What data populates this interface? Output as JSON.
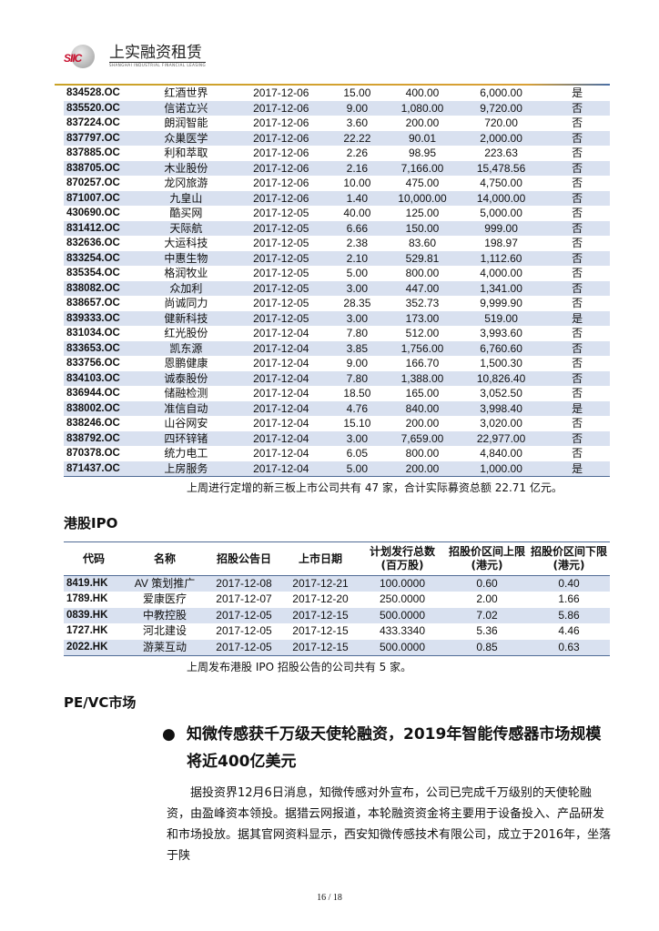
{
  "header": {
    "logo_cn": "上实融资租赁",
    "logo_en": "SHANGHAI INDUSTRIAL FINANCIAL LEASING",
    "logo_mark": "SIIC"
  },
  "neeq_rows": [
    [
      "834528.OC",
      "红酒世界",
      "2017-12-06",
      "15.00",
      "400.00",
      "6,000.00",
      "是"
    ],
    [
      "835520.OC",
      "信诺立兴",
      "2017-12-06",
      "9.00",
      "1,080.00",
      "9,720.00",
      "否"
    ],
    [
      "837224.OC",
      "朗润智能",
      "2017-12-06",
      "3.60",
      "200.00",
      "720.00",
      "否"
    ],
    [
      "837797.OC",
      "众巢医学",
      "2017-12-06",
      "22.22",
      "90.01",
      "2,000.00",
      "否"
    ],
    [
      "837885.OC",
      "利和萃取",
      "2017-12-06",
      "2.26",
      "98.95",
      "223.63",
      "否"
    ],
    [
      "838705.OC",
      "木业股份",
      "2017-12-06",
      "2.16",
      "7,166.00",
      "15,478.56",
      "否"
    ],
    [
      "870257.OC",
      "龙冈旅游",
      "2017-12-06",
      "10.00",
      "475.00",
      "4,750.00",
      "否"
    ],
    [
      "871007.OC",
      "九皇山",
      "2017-12-06",
      "1.40",
      "10,000.00",
      "14,000.00",
      "否"
    ],
    [
      "430690.OC",
      "酷买网",
      "2017-12-05",
      "40.00",
      "125.00",
      "5,000.00",
      "否"
    ],
    [
      "831412.OC",
      "天际航",
      "2017-12-05",
      "6.66",
      "150.00",
      "999.00",
      "否"
    ],
    [
      "832636.OC",
      "大运科技",
      "2017-12-05",
      "2.38",
      "83.60",
      "198.97",
      "否"
    ],
    [
      "833254.OC",
      "中惠生物",
      "2017-12-05",
      "2.10",
      "529.81",
      "1,112.60",
      "否"
    ],
    [
      "835354.OC",
      "格润牧业",
      "2017-12-05",
      "5.00",
      "800.00",
      "4,000.00",
      "否"
    ],
    [
      "838082.OC",
      "众加利",
      "2017-12-05",
      "3.00",
      "447.00",
      "1,341.00",
      "否"
    ],
    [
      "838657.OC",
      "尚诚同力",
      "2017-12-05",
      "28.35",
      "352.73",
      "9,999.90",
      "否"
    ],
    [
      "839333.OC",
      "健新科技",
      "2017-12-05",
      "3.00",
      "173.00",
      "519.00",
      "是"
    ],
    [
      "831034.OC",
      "红光股份",
      "2017-12-04",
      "7.80",
      "512.00",
      "3,993.60",
      "否"
    ],
    [
      "833653.OC",
      "凯东源",
      "2017-12-04",
      "3.85",
      "1,756.00",
      "6,760.60",
      "否"
    ],
    [
      "833756.OC",
      "恩鹏健康",
      "2017-12-04",
      "9.00",
      "166.70",
      "1,500.30",
      "否"
    ],
    [
      "834103.OC",
      "诚泰股份",
      "2017-12-04",
      "7.80",
      "1,388.00",
      "10,826.40",
      "否"
    ],
    [
      "836944.OC",
      "储融检测",
      "2017-12-04",
      "18.50",
      "165.00",
      "3,052.50",
      "否"
    ],
    [
      "838002.OC",
      "准信自动",
      "2017-12-04",
      "4.76",
      "840.00",
      "3,998.40",
      "是"
    ],
    [
      "838246.OC",
      "山谷网安",
      "2017-12-04",
      "15.10",
      "200.00",
      "3,020.00",
      "否"
    ],
    [
      "838792.OC",
      "四环锌锗",
      "2017-12-04",
      "3.00",
      "7,659.00",
      "22,977.00",
      "否"
    ],
    [
      "870378.OC",
      "统力电工",
      "2017-12-04",
      "6.05",
      "800.00",
      "4,840.00",
      "否"
    ],
    [
      "871437.OC",
      "上房服务",
      "2017-12-04",
      "5.00",
      "200.00",
      "1,000.00",
      "是"
    ]
  ],
  "neeq_note": "上周进行定增的新三板上市公司共有 47 家，合计实际募资总额 22.71 亿元。",
  "hk_title": "港股IPO",
  "hk_headers": [
    "代码",
    "名称",
    "招股公告日",
    "上市日期",
    "计划发行总数\n(百万股)",
    "招股价区间上限\n(港元)",
    "招股价区间下限\n(港元)"
  ],
  "hk_rows": [
    [
      "8419.HK",
      "AV 策划推广",
      "2017-12-08",
      "2017-12-21",
      "100.0000",
      "0.60",
      "0.40"
    ],
    [
      "1789.HK",
      "爱康医疗",
      "2017-12-07",
      "2017-12-20",
      "250.0000",
      "2.00",
      "1.66"
    ],
    [
      "0839.HK",
      "中教控股",
      "2017-12-05",
      "2017-12-15",
      "500.0000",
      "7.02",
      "5.86"
    ],
    [
      "1727.HK",
      "河北建设",
      "2017-12-05",
      "2017-12-15",
      "433.3340",
      "5.36",
      "4.46"
    ],
    [
      "2022.HK",
      "游莱互动",
      "2017-12-05",
      "2017-12-15",
      "500.0000",
      "0.85",
      "0.63"
    ]
  ],
  "hk_note": "上周发布港股 IPO 招股公告的公司共有 5 家。",
  "pe_title": "PE/VC市场",
  "article": {
    "bullet": "●",
    "headline": "知微传感获千万级天使轮融资，2019年智能传感器市场规模将近400亿美元",
    "body": "据投资界12月6日消息，知微传感对外宣布，公司已完成千万级别的天使轮融资，由盈峰资本领投。据猎云网报道，本轮融资资金将主要用于设备投入、产品研发和市场投放。据其官网资料显示，西安知微传感技术有限公司，成立于2016年，坐落于陕"
  },
  "footer": {
    "page": "16 / 18"
  }
}
